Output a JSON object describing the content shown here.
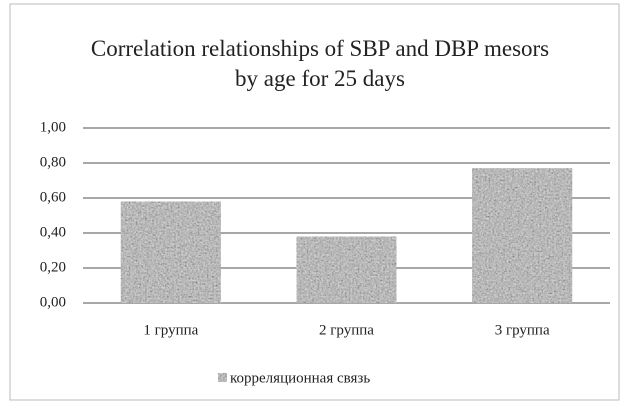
{
  "chart_data": {
    "type": "bar",
    "title": "Correlation relationships of SBP and DBP mesors by age for 25 days",
    "categories": [
      "1 группа",
      "2 группа",
      "3 группа"
    ],
    "series": [
      {
        "name": "корреляционная связь",
        "color": "#9a9a9a",
        "values": [
          0.58,
          0.38,
          0.77
        ]
      }
    ],
    "ylim": [
      0,
      1
    ],
    "yticks": [
      {
        "value": 0,
        "label": "0,00"
      },
      {
        "value": 0.2,
        "label": "0,20"
      },
      {
        "value": 0.4,
        "label": "0,40"
      },
      {
        "value": 0.6,
        "label": "0,60"
      },
      {
        "value": 0.8,
        "label": "0,80"
      },
      {
        "value": 1,
        "label": "1,00"
      }
    ],
    "grid": true,
    "legend": "bottom"
  }
}
